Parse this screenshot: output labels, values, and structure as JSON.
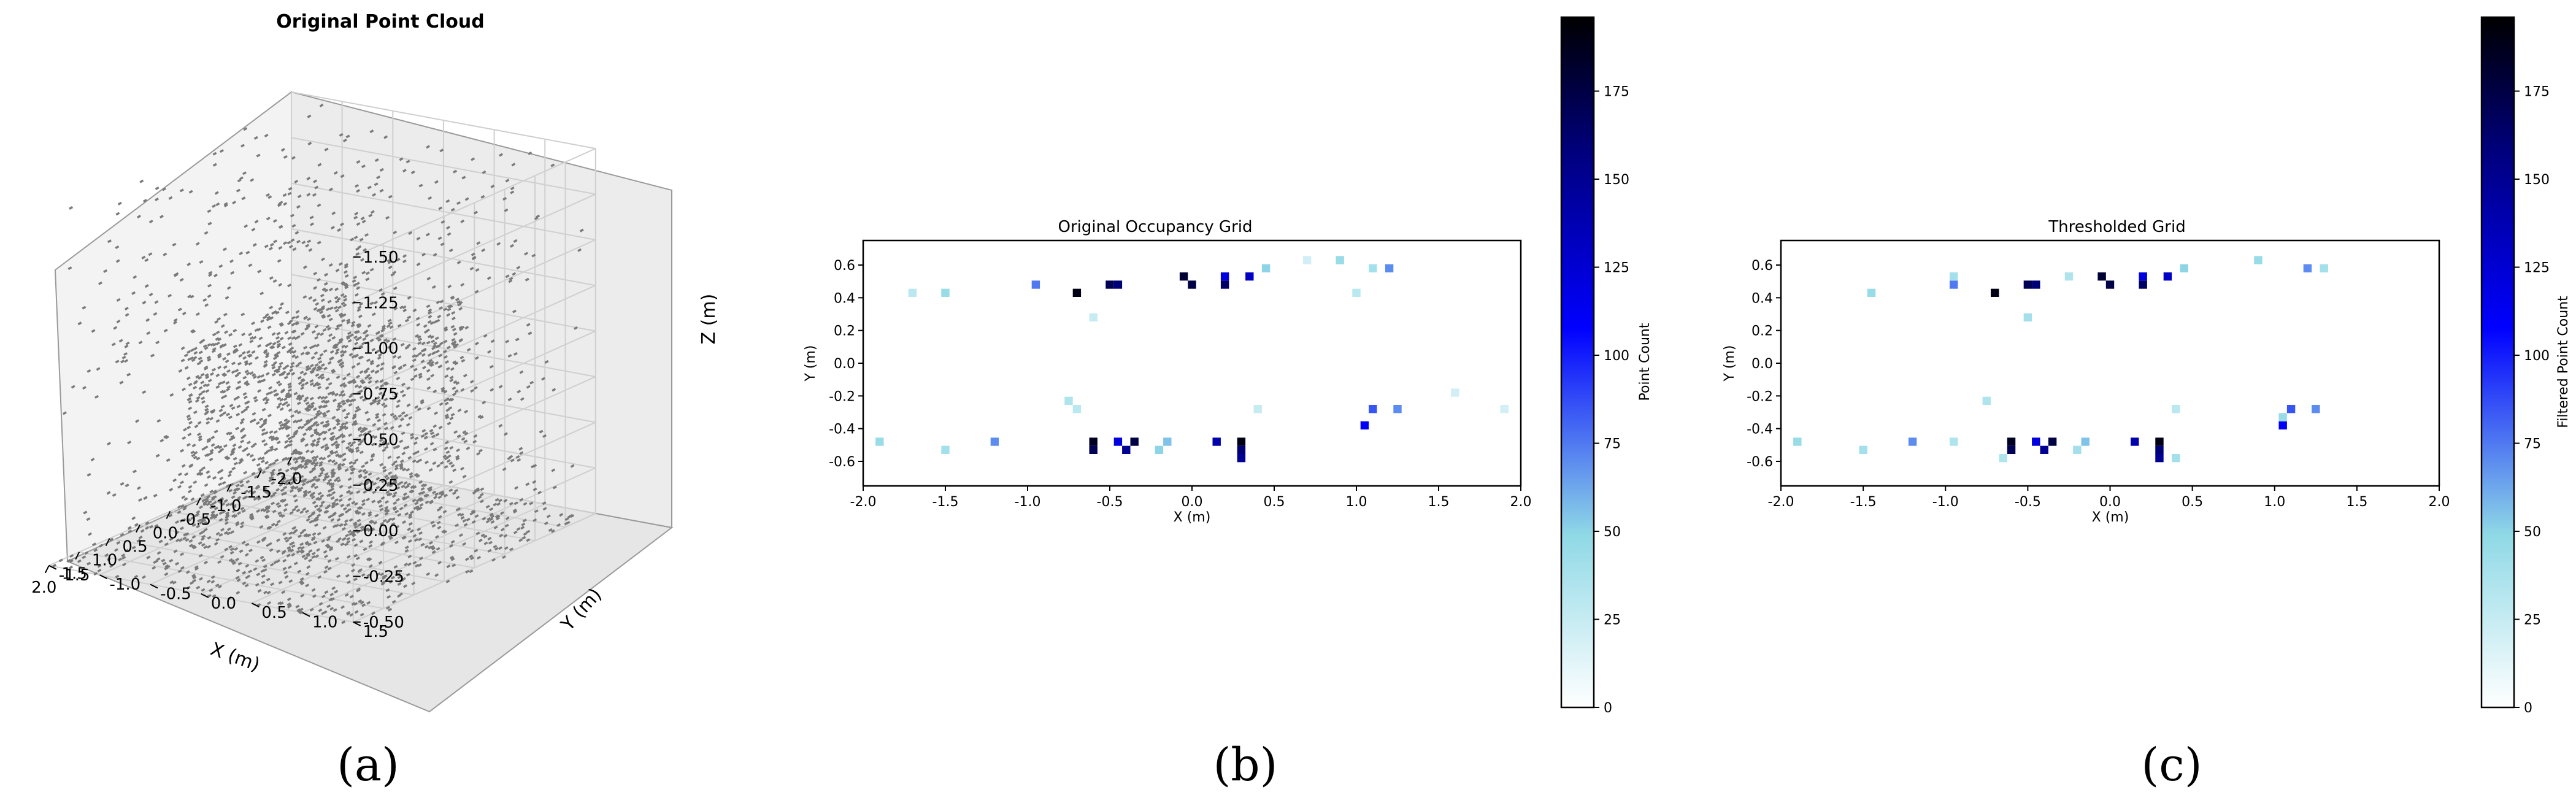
{
  "captions": [
    "(a)",
    "(b)",
    "(c)"
  ],
  "colors": {
    "points": "#7a7a7a",
    "grid": "#cfcfcf",
    "pane": "#f0f0f0",
    "cmap_low": "#ffffff",
    "cmap_mid": "#8fd9e6",
    "cmap_high": "#0000ff",
    "cmap_top": "#000000"
  },
  "chart_data": [
    {
      "type": "scatter",
      "projection": "3d",
      "title": "Original Point Cloud",
      "xlabel": "X (m)",
      "ylabel": "Y (m)",
      "zlabel": "Z (m)",
      "xlim": [
        -2.0,
        2.0
      ],
      "ylim": [
        -1.5,
        1.5
      ],
      "zlim": [
        -0.5,
        1.5
      ],
      "x_ticks": [
        "-2.0",
        "-1.5",
        "-1.0",
        "-0.5",
        "0.0",
        "0.5",
        "1.0",
        "1.5",
        "2.0"
      ],
      "y_ticks": [
        "-1.5",
        "-1.0",
        "-0.5",
        "0.0",
        "0.5",
        "1.0",
        "1.5"
      ],
      "z_ticks": [
        "-0.50",
        "-0.25",
        "0.00",
        "0.25",
        "0.50",
        "0.75",
        "1.00",
        "1.25",
        "1.50"
      ],
      "grid": true
    },
    {
      "type": "heatmap",
      "title": "Original Occupancy Grid",
      "xlabel": "X (m)",
      "ylabel": "Y (m)",
      "xlim": [
        -2.0,
        2.0
      ],
      "ylim": [
        -0.75,
        0.75
      ],
      "x_ticks": [
        "-2.0",
        "-1.5",
        "-1.0",
        "-0.5",
        "0.0",
        "0.5",
        "1.0",
        "1.5",
        "2.0"
      ],
      "y_ticks": [
        "-0.6",
        "-0.4",
        "-0.2",
        "0.0",
        "0.2",
        "0.4",
        "0.6"
      ],
      "colorbar": {
        "label": "Point Count",
        "range": [
          0,
          196
        ],
        "ticks": [
          "0",
          "25",
          "50",
          "75",
          "100",
          "125",
          "150",
          "175"
        ]
      },
      "cells": [
        [
          -0.7,
          0.43,
          190
        ],
        [
          -0.5,
          0.48,
          170
        ],
        [
          -0.45,
          0.48,
          160
        ],
        [
          -0.05,
          0.53,
          180
        ],
        [
          0.0,
          0.48,
          175
        ],
        [
          0.2,
          0.48,
          165
        ],
        [
          0.2,
          0.53,
          120
        ],
        [
          0.35,
          0.53,
          130
        ],
        [
          -0.95,
          0.48,
          75
        ],
        [
          1.2,
          0.58,
          70
        ],
        [
          -0.6,
          -0.48,
          185
        ],
        [
          -0.6,
          -0.53,
          170
        ],
        [
          -0.35,
          -0.48,
          175
        ],
        [
          -0.4,
          -0.53,
          150
        ],
        [
          -0.45,
          -0.48,
          120
        ],
        [
          0.3,
          -0.48,
          190
        ],
        [
          0.3,
          -0.53,
          160
        ],
        [
          0.3,
          -0.58,
          150
        ],
        [
          0.15,
          -0.48,
          140
        ],
        [
          1.05,
          -0.38,
          110
        ],
        [
          1.1,
          -0.28,
          85
        ],
        [
          1.25,
          -0.28,
          70
        ],
        [
          -1.2,
          -0.48,
          70
        ],
        [
          -0.15,
          -0.48,
          55
        ],
        [
          -1.9,
          -0.48,
          45
        ],
        [
          -1.7,
          0.43,
          30
        ],
        [
          -1.5,
          0.43,
          45
        ],
        [
          0.45,
          0.58,
          50
        ],
        [
          0.9,
          0.63,
          45
        ],
        [
          1.1,
          0.58,
          40
        ],
        [
          -0.2,
          -0.53,
          50
        ],
        [
          -1.5,
          -0.53,
          40
        ],
        [
          -0.75,
          -0.23,
          35
        ],
        [
          -0.7,
          -0.28,
          30
        ],
        [
          0.4,
          -0.28,
          25
        ],
        [
          1.6,
          -0.18,
          20
        ],
        [
          1.9,
          -0.28,
          20
        ],
        [
          -0.6,
          0.28,
          25
        ],
        [
          1.0,
          0.43,
          30
        ],
        [
          0.7,
          0.63,
          20
        ]
      ]
    },
    {
      "type": "heatmap",
      "title": "Thresholded Grid",
      "xlabel": "X (m)",
      "ylabel": "Y (m)",
      "xlim": [
        -2.0,
        2.0
      ],
      "ylim": [
        -0.75,
        0.75
      ],
      "x_ticks": [
        "-2.0",
        "-1.5",
        "-1.0",
        "-0.5",
        "0.0",
        "0.5",
        "1.0",
        "1.5",
        "2.0"
      ],
      "y_ticks": [
        "-0.6",
        "-0.4",
        "-0.2",
        "0.0",
        "0.2",
        "0.4",
        "0.6"
      ],
      "colorbar": {
        "label": "Filtered Point Count",
        "range": [
          0,
          196
        ],
        "ticks": [
          "0",
          "25",
          "50",
          "75",
          "100",
          "125",
          "150",
          "175"
        ]
      },
      "cells": [
        [
          -0.7,
          0.43,
          190
        ],
        [
          -0.5,
          0.48,
          170
        ],
        [
          -0.45,
          0.48,
          160
        ],
        [
          -0.05,
          0.53,
          180
        ],
        [
          0.0,
          0.48,
          175
        ],
        [
          0.2,
          0.48,
          165
        ],
        [
          0.2,
          0.53,
          120
        ],
        [
          0.35,
          0.53,
          130
        ],
        [
          -0.95,
          0.48,
          75
        ],
        [
          1.2,
          0.58,
          70
        ],
        [
          -0.6,
          -0.48,
          185
        ],
        [
          -0.6,
          -0.53,
          170
        ],
        [
          -0.35,
          -0.48,
          175
        ],
        [
          -0.4,
          -0.53,
          150
        ],
        [
          -0.45,
          -0.48,
          120
        ],
        [
          0.3,
          -0.48,
          190
        ],
        [
          0.3,
          -0.53,
          160
        ],
        [
          0.3,
          -0.58,
          150
        ],
        [
          0.15,
          -0.48,
          140
        ],
        [
          1.05,
          -0.38,
          110
        ],
        [
          1.1,
          -0.28,
          85
        ],
        [
          1.25,
          -0.28,
          70
        ],
        [
          -1.2,
          -0.48,
          70
        ],
        [
          -0.15,
          -0.48,
          55
        ],
        [
          -1.9,
          -0.48,
          45
        ],
        [
          -1.45,
          0.43,
          45
        ],
        [
          -0.95,
          0.53,
          40
        ],
        [
          -0.5,
          0.28,
          40
        ],
        [
          -0.25,
          0.53,
          35
        ],
        [
          0.45,
          0.58,
          50
        ],
        [
          0.9,
          0.63,
          45
        ],
        [
          1.3,
          0.58,
          40
        ],
        [
          -0.75,
          -0.23,
          35
        ],
        [
          0.4,
          -0.28,
          30
        ],
        [
          -0.2,
          -0.53,
          40
        ],
        [
          -1.5,
          -0.53,
          40
        ],
        [
          -0.95,
          -0.48,
          35
        ],
        [
          0.4,
          -0.58,
          40
        ],
        [
          -0.65,
          -0.58,
          35
        ],
        [
          1.05,
          -0.33,
          45
        ]
      ]
    }
  ]
}
